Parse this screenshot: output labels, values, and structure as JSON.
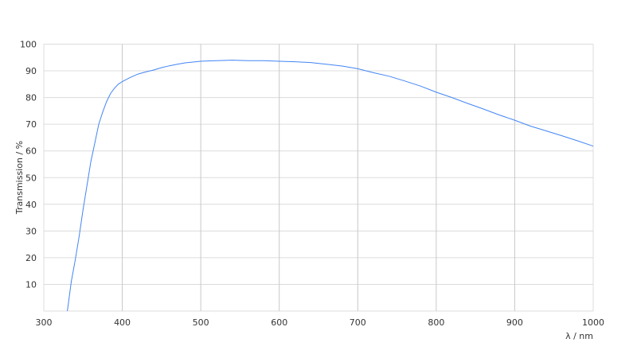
{
  "chart_data": {
    "type": "line",
    "title": "",
    "xlabel": "λ / nm",
    "ylabel": "Transmission / %",
    "xlim": [
      300,
      1000
    ],
    "ylim": [
      0,
      100
    ],
    "xticks": [
      300,
      400,
      500,
      600,
      700,
      800,
      900,
      1000
    ],
    "yticks": [
      10,
      20,
      30,
      40,
      50,
      60,
      70,
      80,
      90,
      100
    ],
    "grid": true,
    "line_color": "#4285f4",
    "series": [
      {
        "x": [
          330,
          335,
          340,
          345,
          350,
          355,
          360,
          365,
          370,
          375,
          380,
          385,
          390,
          395,
          400,
          410,
          420,
          430,
          440,
          450,
          460,
          470,
          480,
          490,
          500,
          520,
          540,
          560,
          580,
          600,
          620,
          640,
          660,
          680,
          700,
          720,
          740,
          760,
          780,
          800,
          820,
          840,
          860,
          880,
          900,
          920,
          940,
          960,
          980,
          1000
        ],
        "y": [
          0,
          11,
          19,
          28,
          38,
          47,
          56,
          63,
          70,
          74.5,
          78.5,
          81.5,
          83.5,
          85,
          86,
          87.5,
          88.8,
          89.6,
          90.3,
          91.2,
          91.9,
          92.5,
          93,
          93.3,
          93.6,
          93.8,
          94,
          93.8,
          93.8,
          93.6,
          93.4,
          93.1,
          92.5,
          91.8,
          90.8,
          89.3,
          88,
          86.2,
          84.3,
          82,
          80,
          77.8,
          75.7,
          73.5,
          71.5,
          69.3,
          67.5,
          65.7,
          63.8,
          61.8
        ]
      }
    ]
  }
}
